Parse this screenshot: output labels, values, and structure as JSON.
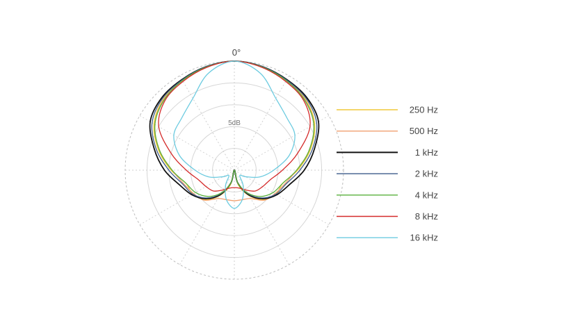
{
  "chart_data": {
    "type": "polar",
    "angle_labels": [
      "0°"
    ],
    "ring_label": "5dB",
    "rings": 5,
    "spokes": 12,
    "grid": true,
    "legend_position": "right",
    "series": [
      {
        "name": "250 Hz",
        "color": "#f0c93a",
        "r": [
          5.0,
          4.9,
          4.75,
          4.6,
          4.25,
          3.6,
          2.9,
          2.3,
          2.2,
          1.9,
          1.35,
          0.7,
          0.0
        ]
      },
      {
        "name": "500 Hz",
        "color": "#f0a070",
        "r": [
          5.0,
          4.9,
          4.75,
          4.58,
          4.2,
          3.55,
          2.85,
          2.4,
          2.15,
          1.95,
          1.5,
          1.4,
          1.4
        ]
      },
      {
        "name": "1 kHz",
        "color": "#111111",
        "r": [
          5.0,
          4.92,
          4.8,
          4.7,
          4.45,
          3.8,
          3.2,
          2.6,
          2.25,
          1.85,
          1.3,
          0.6,
          0.0
        ]
      },
      {
        "name": "2 kHz",
        "color": "#3c5a8a",
        "r": [
          5.0,
          4.92,
          4.78,
          4.65,
          4.35,
          3.7,
          3.0,
          2.45,
          2.2,
          1.8,
          1.25,
          0.6,
          0.0
        ]
      },
      {
        "name": "4 kHz",
        "color": "#5ab03c",
        "r": [
          5.0,
          4.9,
          4.75,
          4.55,
          4.2,
          3.55,
          2.85,
          2.3,
          2.05,
          1.7,
          1.2,
          0.6,
          0.0
        ]
      },
      {
        "name": "8 kHz",
        "color": "#d42a2a",
        "r": [
          5.0,
          4.88,
          4.7,
          4.5,
          4.0,
          3.0,
          2.2,
          1.7,
          1.5,
          1.35,
          1.05,
          0.85,
          0.8
        ]
      },
      {
        "name": "16 kHz",
        "color": "#6ccbe0",
        "r": [
          5.0,
          4.6,
          3.8,
          3.4,
          3.2,
          2.6,
          1.8,
          1.2,
          0.6,
          0.35,
          0.8,
          1.4,
          1.75
        ]
      }
    ]
  }
}
